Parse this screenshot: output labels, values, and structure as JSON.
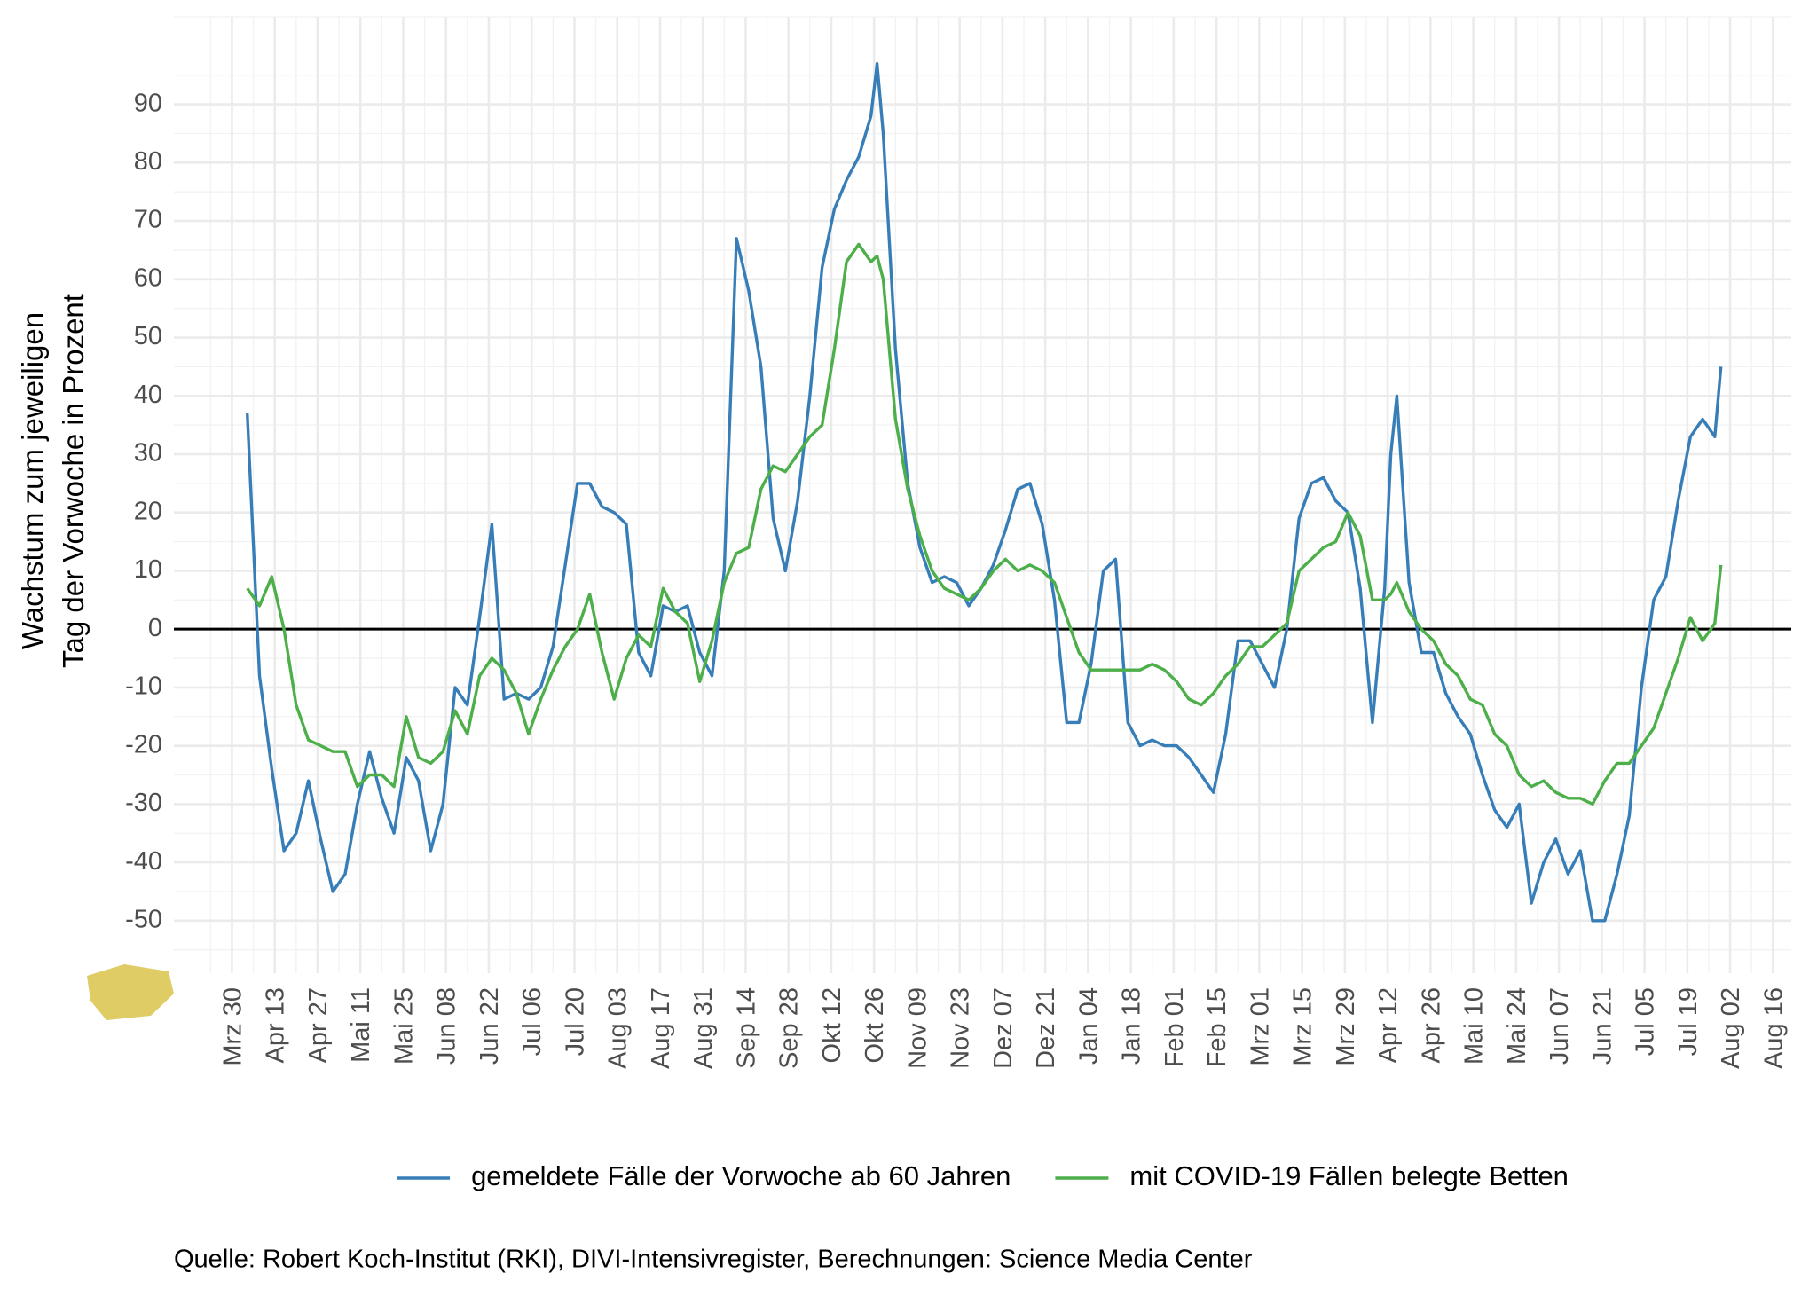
{
  "chart_data": {
    "type": "line",
    "ylabel": [
      "Wachstum zum jeweiligen",
      "Tag der Vorwoche in Prozent"
    ],
    "caption": "Quelle: Robert Koch-Institut (RKI), DIVI-Intensivregister, Berechnungen: Science Media Center",
    "x": [
      5,
      9,
      13,
      17,
      21,
      25,
      29,
      33,
      37,
      41,
      45,
      49,
      53,
      57,
      61,
      65,
      69,
      73,
      77,
      81,
      85,
      89,
      93,
      97,
      101,
      105,
      109,
      113,
      117,
      121,
      125,
      129,
      133,
      137,
      141,
      145,
      149,
      153,
      157,
      161,
      165,
      169,
      173,
      177,
      181,
      185,
      189,
      193,
      197,
      201,
      205,
      209,
      211,
      213,
      217,
      221,
      225,
      229,
      233,
      237,
      241,
      245,
      249,
      253,
      257,
      261,
      265,
      269,
      273,
      277,
      281,
      285,
      289,
      293,
      297,
      301,
      305,
      309,
      313,
      317,
      321,
      325,
      329,
      333,
      337,
      341,
      345,
      349,
      353,
      357,
      361,
      365,
      369,
      373,
      377,
      379,
      381,
      385,
      389,
      393,
      397,
      401,
      405,
      409,
      413,
      417,
      421,
      425,
      429,
      433,
      437,
      441,
      445,
      449,
      453,
      457,
      461,
      465,
      469,
      473,
      477,
      481,
      485,
      487
    ],
    "series": [
      {
        "name": "gemeldete Fälle der Vorwoche ab 60 Jahren",
        "color": "#377eb8",
        "values": [
          37,
          -8,
          -24,
          -38,
          -35,
          -26,
          -36,
          -45,
          -42,
          -30,
          -21,
          -29,
          -35,
          -22,
          -26,
          -38,
          -30,
          -10,
          -13,
          2,
          18,
          -12,
          -11,
          -12,
          -10,
          -3,
          11,
          25,
          25,
          21,
          20,
          18,
          -4,
          -8,
          4,
          3,
          4,
          -4,
          -8,
          10,
          67,
          58,
          45,
          19,
          10,
          22,
          40,
          62,
          72,
          77,
          81,
          88,
          97,
          85,
          48,
          25,
          14,
          8,
          9,
          8,
          4,
          7,
          11,
          17,
          24,
          25,
          18,
          5,
          -16,
          -16,
          -6,
          10,
          12,
          -16,
          -20,
          -19,
          -20,
          -20,
          -22,
          -25,
          -28,
          -18,
          -2,
          -2,
          -6,
          -10,
          0,
          19,
          25,
          26,
          22,
          20,
          7,
          -16,
          7,
          30,
          40,
          8,
          -4,
          -4,
          -11,
          -15,
          -18,
          -25,
          -31,
          -34,
          -30,
          -47,
          -40,
          -36,
          -42,
          -38,
          -50,
          -50,
          -42,
          -32,
          -10,
          5,
          9,
          22,
          33,
          36,
          33,
          45
        ]
      },
      {
        "name": "mit COVID-19 Fällen belegte Betten",
        "color": "#4daf4a",
        "values": [
          7,
          4,
          9,
          0,
          -13,
          -19,
          -20,
          -21,
          -21,
          -27,
          -25,
          -25,
          -27,
          -15,
          -22,
          -23,
          -21,
          -14,
          -18,
          -8,
          -5,
          -7,
          -11,
          -18,
          -12,
          -7,
          -3,
          0,
          6,
          -4,
          -12,
          -5,
          -1,
          -3,
          7,
          3,
          1,
          -9,
          -2,
          8,
          13,
          14,
          24,
          28,
          27,
          30,
          33,
          35,
          48,
          63,
          66,
          63,
          64,
          60,
          36,
          24,
          16,
          10,
          7,
          6,
          5,
          7,
          10,
          12,
          10,
          11,
          10,
          8,
          2,
          -4,
          -7,
          -7,
          -7,
          -7,
          -7,
          -6,
          -7,
          -9,
          -12,
          -13,
          -11,
          -8,
          -6,
          -3,
          -3,
          -1,
          1,
          10,
          12,
          14,
          15,
          20,
          16,
          5,
          5,
          6,
          8,
          3,
          0,
          -2,
          -6,
          -8,
          -12,
          -13,
          -18,
          -20,
          -25,
          -27,
          -26,
          -28,
          -29,
          -29,
          -30,
          -26,
          -23,
          -23,
          -20,
          -17,
          -11,
          -5,
          2,
          -2,
          1,
          11
        ]
      }
    ],
    "xlim": [
      -19,
      510
    ],
    "xticks": [
      {
        "value": 0,
        "label": "Mrz 30"
      },
      {
        "value": 14,
        "label": "Apr 13"
      },
      {
        "value": 28,
        "label": "Apr 27"
      },
      {
        "value": 42,
        "label": "Mai 11"
      },
      {
        "value": 56,
        "label": "Mai 25"
      },
      {
        "value": 70,
        "label": "Jun 08"
      },
      {
        "value": 84,
        "label": "Jun 22"
      },
      {
        "value": 98,
        "label": "Jul 06"
      },
      {
        "value": 112,
        "label": "Jul 20"
      },
      {
        "value": 126,
        "label": "Aug 03"
      },
      {
        "value": 140,
        "label": "Aug 17"
      },
      {
        "value": 154,
        "label": "Aug 31"
      },
      {
        "value": 168,
        "label": "Sep 14"
      },
      {
        "value": 182,
        "label": "Sep 28"
      },
      {
        "value": 196,
        "label": "Okt 12"
      },
      {
        "value": 210,
        "label": "Okt 26"
      },
      {
        "value": 224,
        "label": "Nov 09"
      },
      {
        "value": 238,
        "label": "Nov 23"
      },
      {
        "value": 252,
        "label": "Dez 07"
      },
      {
        "value": 266,
        "label": "Dez 21"
      },
      {
        "value": 280,
        "label": "Jan 04"
      },
      {
        "value": 294,
        "label": "Jan 18"
      },
      {
        "value": 308,
        "label": "Feb 01"
      },
      {
        "value": 322,
        "label": "Feb 15"
      },
      {
        "value": 336,
        "label": "Mrz 01"
      },
      {
        "value": 350,
        "label": "Mrz 15"
      },
      {
        "value": 364,
        "label": "Mrz 29"
      },
      {
        "value": 378,
        "label": "Apr 12"
      },
      {
        "value": 392,
        "label": "Apr 26"
      },
      {
        "value": 406,
        "label": "Mai 10"
      },
      {
        "value": 420,
        "label": "Mai 24"
      },
      {
        "value": 434,
        "label": "Jun 07"
      },
      {
        "value": 448,
        "label": "Jun 21"
      },
      {
        "value": 462,
        "label": "Jul 05"
      },
      {
        "value": 476,
        "label": "Jul 19"
      },
      {
        "value": 490,
        "label": "Aug 02"
      },
      {
        "value": 504,
        "label": "Aug 16"
      }
    ],
    "ylim": [
      -59,
      105
    ],
    "yticks": [
      -50,
      -40,
      -30,
      -20,
      -10,
      0,
      10,
      20,
      30,
      40,
      50,
      60,
      70,
      80,
      90
    ],
    "hline": 0,
    "grid": true,
    "legend": "bottom"
  }
}
